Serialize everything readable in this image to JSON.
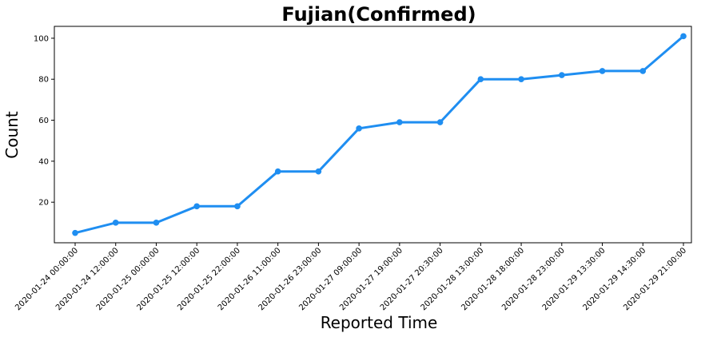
{
  "chart_data": {
    "type": "line",
    "title": "Fujian(Confirmed)",
    "xlabel": "Reported Time",
    "ylabel": "Count",
    "categories": [
      "2020-01-24 00:00:00",
      "2020-01-24 12:00:00",
      "2020-01-25 00:00:00",
      "2020-01-25 12:00:00",
      "2020-01-25 22:00:00",
      "2020-01-26 11:00:00",
      "2020-01-26 23:00:00",
      "2020-01-27 09:00:00",
      "2020-01-27 19:00:00",
      "2020-01-27 20:30:00",
      "2020-01-28 13:00:00",
      "2020-01-28 18:00:00",
      "2020-01-28 23:00:00",
      "2020-01-29 13:30:00",
      "2020-01-29 14:30:00",
      "2020-01-29 21:00:00"
    ],
    "values": [
      5,
      10,
      10,
      18,
      18,
      35,
      35,
      56,
      59,
      59,
      80,
      80,
      82,
      84,
      84,
      101
    ],
    "yticks": [
      20,
      40,
      60,
      80,
      100
    ],
    "ylim": [
      0.2,
      105.8
    ],
    "grid": false,
    "line_color": "#1f8ef1"
  }
}
